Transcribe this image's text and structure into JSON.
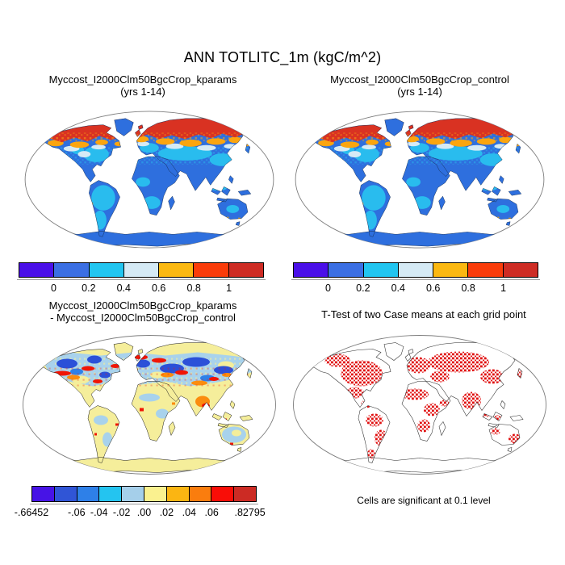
{
  "figure": {
    "title": "ANN TOTLITC_1m (kgC/m^2)"
  },
  "panels": {
    "top_left": {
      "line1": "Myccost_I2000Clm50BgcCrop_kparams",
      "line2": "(yrs 1-14)"
    },
    "top_right": {
      "line1": "Myccost_I2000Clm50BgcCrop_control",
      "line2": "(yrs 1-14)"
    },
    "bottom_left": {
      "line1": "Myccost_I2000Clm50BgcCrop_kparams",
      "line2": "- Myccost_I2000Clm50BgcCrop_control"
    },
    "bottom_right": {
      "title": "T-Test of two Case means at each grid point",
      "caption": "Cells are significant at 0.1 level"
    }
  },
  "colorbars": {
    "top": {
      "colors": [
        "#4A10E8",
        "#3B6FE3",
        "#22C5F0",
        "#D5EAF5",
        "#FBB811",
        "#FA3C0A",
        "#CE2C24"
      ],
      "ticks": [
        {
          "label": "0",
          "pos": 14.286
        },
        {
          "label": "0.2",
          "pos": 28.571
        },
        {
          "label": "0.4",
          "pos": 42.857
        },
        {
          "label": "0.6",
          "pos": 57.143
        },
        {
          "label": "0.8",
          "pos": 71.429
        },
        {
          "label": "1",
          "pos": 85.714
        }
      ]
    },
    "diff": {
      "colors": [
        "#4713E6",
        "#3055D6",
        "#2E80E8",
        "#24C4F0",
        "#A5CFEA",
        "#FAF18F",
        "#FBB512",
        "#FA7D0E",
        "#F90D07",
        "#CC2B24"
      ],
      "ticks": [
        {
          "label": "-.66452",
          "pos": 0
        },
        {
          "label": "-.06",
          "pos": 20
        },
        {
          "label": "-.04",
          "pos": 30
        },
        {
          "label": "-.02",
          "pos": 40
        },
        {
          "label": ".00",
          "pos": 50
        },
        {
          "label": ".02",
          "pos": 60
        },
        {
          "label": ".04",
          "pos": 70
        },
        {
          "label": ".06",
          "pos": 80
        },
        {
          "label": ".82795",
          "pos": 97
        }
      ]
    }
  },
  "chart_data": [
    {
      "type": "heatmap",
      "subtype": "global-map-robinson",
      "title": "Myccost_I2000Clm50BgcCrop_kparams (yrs 1-14)",
      "variable": "ANN TOTLITC_1m",
      "units": "kgC/m^2",
      "levels": [
        0,
        0.2,
        0.4,
        0.6,
        0.8,
        1
      ],
      "palette": [
        "#4A10E8",
        "#3B6FE3",
        "#22C5F0",
        "#D5EAF5",
        "#FBB811",
        "#FA3C0A",
        "#CE2C24"
      ],
      "legend_position": "below",
      "pattern_notes": "high values (>0.8, red/orange) across boreal North America, Scandinavia and Siberia; low values (0-0.4, blue/cyan) over tropics, mid-latitudes and Antarctica; ocean blank"
    },
    {
      "type": "heatmap",
      "subtype": "global-map-robinson",
      "title": "Myccost_I2000Clm50BgcCrop_control (yrs 1-14)",
      "variable": "ANN TOTLITC_1m",
      "units": "kgC/m^2",
      "levels": [
        0,
        0.2,
        0.4,
        0.6,
        0.8,
        1
      ],
      "palette": [
        "#4A10E8",
        "#3B6FE3",
        "#22C5F0",
        "#D5EAF5",
        "#FBB811",
        "#FA3C0A",
        "#CE2C24"
      ],
      "legend_position": "below",
      "pattern_notes": "nearly identical spatial pattern to kparams case"
    },
    {
      "type": "heatmap",
      "subtype": "global-map-difference",
      "title": "Myccost_I2000Clm50BgcCrop_kparams - Myccost_I2000Clm50BgcCrop_control",
      "range": [
        -0.66452,
        0.82795
      ],
      "tick_values": [
        -0.66452,
        -0.06,
        -0.04,
        -0.02,
        0.0,
        0.02,
        0.04,
        0.06,
        0.82795
      ],
      "palette": [
        "#4713E6",
        "#3055D6",
        "#2E80E8",
        "#24C4F0",
        "#A5CFEA",
        "#FAF18F",
        "#FBB512",
        "#FA7D0E",
        "#F90D07",
        "#CC2B24"
      ],
      "legend_position": "below",
      "pattern_notes": "mostly pale yellow/light blue (near zero); mottled dark blue, red and orange differences across northern mid/high latitudes, India and coastlines; Antarctica pale yellow"
    },
    {
      "type": "map",
      "subtype": "significance-mask",
      "title": "T-Test of two Case means at each grid point",
      "caption": "Cells are significant at 0.1 level",
      "significance_level": 0.1,
      "significant_color": "#E01010",
      "pattern_notes": "red speckled cells over eastern North America, Europe, Russia, India, Southeast Asia, Sahel, parts of South America and Australia; Antarctica outline only"
    }
  ]
}
